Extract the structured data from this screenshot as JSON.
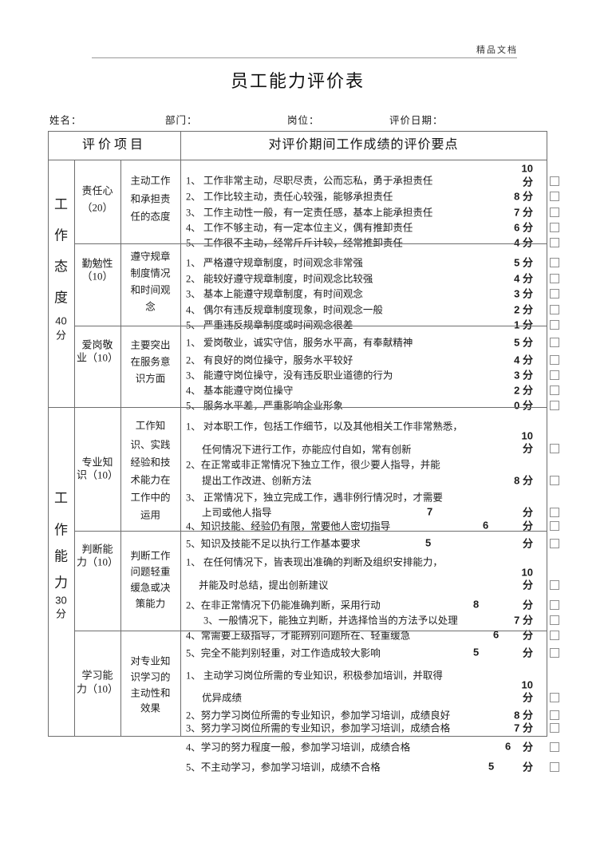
{
  "page": {
    "watermark": "精品文档",
    "title": "员工能力评价表"
  },
  "fields": {
    "name_label": "姓名：",
    "department_label": "部门：",
    "position_label": "岗位：",
    "date_label": "评价日期："
  },
  "table": {
    "header": {
      "project_col": "评价项目",
      "points_col": "对评价期间工作成绩的评价要点"
    },
    "groups": [
      {
        "name": "工作态度",
        "chars": [
          "工",
          "作",
          "态",
          "度"
        ],
        "score": "40",
        "unit": "分"
      },
      {
        "name": "工作能力",
        "chars": [
          "工",
          "作",
          "能",
          "力"
        ],
        "score": "30",
        "unit": "分"
      }
    ],
    "sections": [
      {
        "item_lines": [
          "责任心",
          "（20）"
        ],
        "desc_lines": [
          "主动工作",
          "和承担责",
          "任的态度"
        ],
        "rows": [
          {
            "lines": [
              "1、 工作非常主动，尽职尽责，公而忘私，勇于承担责任"
            ],
            "score": "10",
            "unit": "分"
          },
          {
            "lines": [
              "2、 工作比较主动，责任心较强，能够承担责任"
            ],
            "score": "8",
            "unit": "分"
          },
          {
            "lines": [
              "3、 工作主动性一般，有一定责任感，基本上能承担责任"
            ],
            "score": "7",
            "unit": "分"
          },
          {
            "lines": [
              "4、 工作不够主动，有一定本位主义，偶有推卸责任"
            ],
            "score": "6",
            "unit": "分"
          },
          {
            "lines": [
              "5、 工作很不主动，经常斤斤计较，经常推卸责任"
            ],
            "score": "4",
            "unit": "分"
          }
        ]
      },
      {
        "item_lines": [
          "勤勉性",
          "（10）"
        ],
        "desc_lines": [
          "遵守规章",
          "制度情况",
          "和时间观",
          "念"
        ],
        "rows": [
          {
            "lines": [
              "1、 严格遵守规章制度，时间观念非常强"
            ],
            "score": "5",
            "unit": "分"
          },
          {
            "lines": [
              "2、 能较好遵守规章制度，时间观念比较强"
            ],
            "score": "4",
            "unit": "分"
          },
          {
            "lines": [
              "3、 基本上能遵守规章制度，有时间观念"
            ],
            "score": "3",
            "unit": "分"
          },
          {
            "lines": [
              "4、 偶尔有违反规章制度现象，时间观念一般"
            ],
            "score": "2",
            "unit": "分"
          },
          {
            "lines": [
              "5、 严重违反规章制度或时间观念很差"
            ],
            "score": "1",
            "unit": "分"
          }
        ]
      },
      {
        "item_lines": [
          "爱岗敬",
          "业（10）"
        ],
        "desc_lines": [
          "主要突出",
          "在服务意",
          "识方面"
        ],
        "rows": [
          {
            "lines": [
              "1、 爱岗敬业，诚实守信，服务水平高，有奉献精神"
            ],
            "score": "5",
            "unit": "分"
          },
          {
            "lines": [
              "2、 有良好的岗位操守，服务水平较好"
            ],
            "score": "4",
            "unit": "分"
          },
          {
            "lines": [
              "3、 能遵守岗位操守，没有违反职业道德的行为"
            ],
            "score": "3",
            "unit": "分"
          },
          {
            "lines": [
              "4、 基本能遵守岗位操守"
            ],
            "score": "2",
            "unit": "分"
          },
          {
            "lines": [
              "5、 服务水平差，严重影响企业形象"
            ],
            "score": "0",
            "unit": "分"
          }
        ]
      },
      {
        "item_lines": [
          "专业知",
          "识（10）"
        ],
        "desc_lines": [
          "工作知",
          "识、实践",
          "经验和技",
          "术能力在",
          "工作中的",
          "运用"
        ],
        "rows": [
          {
            "lines": [
              "1、 对本职工作，包括工作细节，以及其他相关工作非常熟悉，",
              "任何情况下进行工作，亦能应付自如，常有创新"
            ],
            "score": "10",
            "unit": "分"
          },
          {
            "lines": [
              "2、在正常或非正常情况下独立工作，很少要人指导，并能",
              "提出工作改进、创新方法"
            ],
            "score": "8",
            "unit": "分"
          },
          {
            "lines": [
              "3、 正常情况下，独立完成工作，遇非例行情况时，才需要",
              "上司或他人指导"
            ],
            "score": "7",
            "unit": "分"
          },
          {
            "lines": [
              "4、知识技能、经验仍有限，常要他人密切指导"
            ],
            "score": "6",
            "unit": "分"
          },
          {
            "lines": [
              "5、知识及技能不足以执行工作基本要求"
            ],
            "score": "5",
            "unit": "分"
          }
        ]
      },
      {
        "item_lines": [
          "判断能",
          "力（10）"
        ],
        "desc_lines": [
          "判断工作",
          "问题轻重",
          "缓急或决",
          "策能力"
        ],
        "rows": [
          {
            "lines": [
              "1、 在任何情况下，皆表现出准确的判断及组织安排能力，",
              "并能及时总结，提出创新建议"
            ],
            "score": "10",
            "unit": "分"
          },
          {
            "lines": [
              "2、在非正常情况下仍能准确判断，采用行动"
            ],
            "score": "8",
            "unit": "分"
          },
          {
            "lines": [
              "3、一般情况下，能独立判断，并选择恰当的方法予以处理"
            ],
            "score": "7",
            "unit": "分"
          },
          {
            "lines": [
              "4、常需要上级指导，才能辨别问题所在、轻重缓急"
            ],
            "score": "6",
            "unit": "分"
          },
          {
            "lines": [
              "5、完全不能判别轻重，对工作造成较大影响"
            ],
            "score": "5",
            "unit": "分"
          }
        ]
      },
      {
        "item_lines": [
          "学习能",
          "力（10）"
        ],
        "desc_lines": [
          "对专业知",
          "识学习的",
          "主动性和",
          "效果"
        ],
        "rows": [
          {
            "lines": [
              "1、 主动学习岗位所需的专业知识，积极参加培训，并取得",
              "优异成绩"
            ],
            "score": "10",
            "unit": "分"
          },
          {
            "lines": [
              "2、努力学习岗位所需的专业知识，参加学习培训，成绩良好"
            ],
            "score": "8",
            "unit": "分"
          },
          {
            "lines": [
              "3、努力学习岗位所需的专业知识，参加学习培训，成绩合格"
            ],
            "score": "7",
            "unit": "分"
          },
          {
            "lines": [
              "4、学习的努力程度一般，参加学习培训，成绩合格"
            ],
            "score": "6",
            "unit": "分"
          },
          {
            "lines": [
              "5、不主动学习，参加学习培训，成绩不合格"
            ],
            "score": "5",
            "unit": "分"
          }
        ]
      }
    ]
  }
}
